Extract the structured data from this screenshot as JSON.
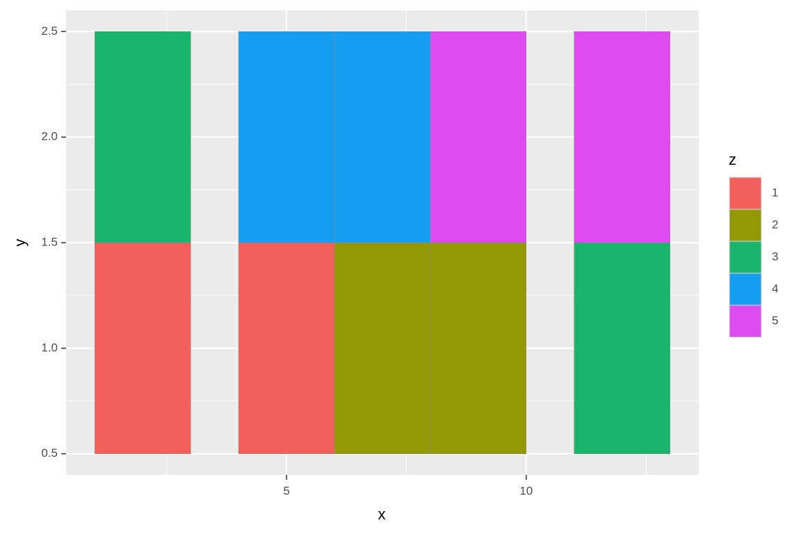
{
  "chart_data": {
    "type": "tile",
    "x_label": "x",
    "y_label": "y",
    "xmin": [
      1,
      1,
      4,
      4,
      6,
      6,
      8,
      8,
      11,
      11
    ],
    "xmax": [
      3,
      3,
      6,
      6,
      8,
      8,
      10,
      10,
      13,
      13
    ],
    "ymin": [
      0.5,
      1.5,
      0.5,
      1.5,
      0.5,
      1.5,
      0.5,
      1.5,
      0.5,
      1.5
    ],
    "ymax": [
      1.5,
      2.5,
      1.5,
      2.5,
      1.5,
      2.5,
      1.5,
      2.5,
      1.5,
      2.5
    ],
    "z": [
      1,
      3,
      1,
      4,
      2,
      4,
      2,
      5,
      3,
      5
    ],
    "xlim": [
      0.4,
      13.6
    ],
    "ylim": [
      0.4,
      2.6
    ],
    "xticks": [
      5,
      10
    ],
    "yticks": [
      {
        "value": 0.5,
        "label": "0.5"
      },
      {
        "value": 1,
        "label": "1.0"
      },
      {
        "value": 1.5,
        "label": "1.5"
      },
      {
        "value": 2,
        "label": "2.0"
      },
      {
        "value": 2.5,
        "label": "2.5"
      }
    ],
    "xminor": [
      2.5,
      7.5,
      12.5
    ],
    "yminor": [
      0.75,
      1.25,
      1.75,
      2.25
    ],
    "grid": true,
    "legend": {
      "title": "z",
      "position": "right",
      "levels": [
        1,
        2,
        3,
        4,
        5
      ],
      "colors": [
        "#F35F5A",
        "#939905",
        "#1BB46C",
        "#169FF0",
        "#DE4BF0"
      ]
    }
  }
}
